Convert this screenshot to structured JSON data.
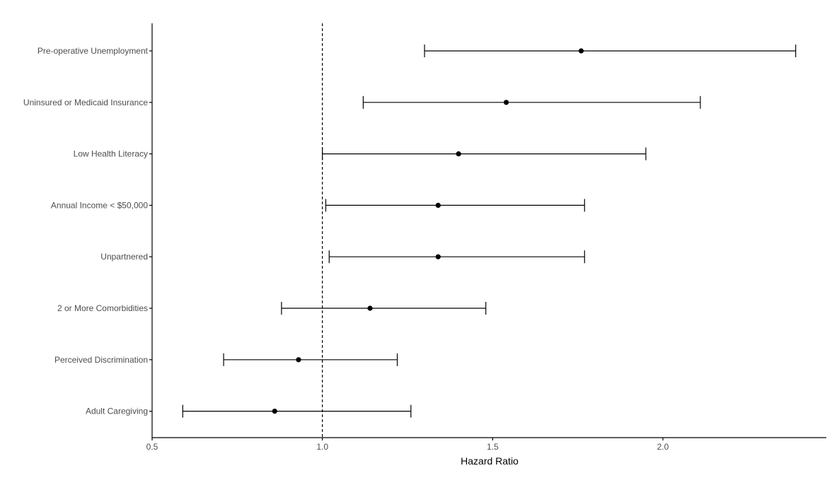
{
  "chart_data": {
    "type": "forest",
    "xlabel": "Hazard Ratio",
    "ylabel": "",
    "xlim": [
      0.5,
      2.48
    ],
    "xticks": [
      0.5,
      1.0,
      1.5,
      2.0
    ],
    "xtick_labels": [
      "0.5",
      "1.0",
      "1.5",
      "2.0"
    ],
    "reference_line": 1.0,
    "grid": false,
    "categories": [
      "Pre-operative Unemployment",
      "Uninsured or Medicaid Insurance",
      "Low Health Literacy",
      "Annual Income < $50,000",
      "Unpartnered",
      "2 or More Comorbidities",
      "Perceived Discrimination",
      "Adult Caregiving"
    ],
    "estimates": [
      1.76,
      1.54,
      1.4,
      1.34,
      1.34,
      1.14,
      0.93,
      0.86
    ],
    "lower": [
      1.3,
      1.12,
      1.0,
      1.01,
      1.02,
      0.88,
      0.71,
      0.59
    ],
    "upper": [
      2.39,
      2.11,
      1.95,
      1.77,
      1.77,
      1.48,
      1.22,
      1.26
    ]
  }
}
